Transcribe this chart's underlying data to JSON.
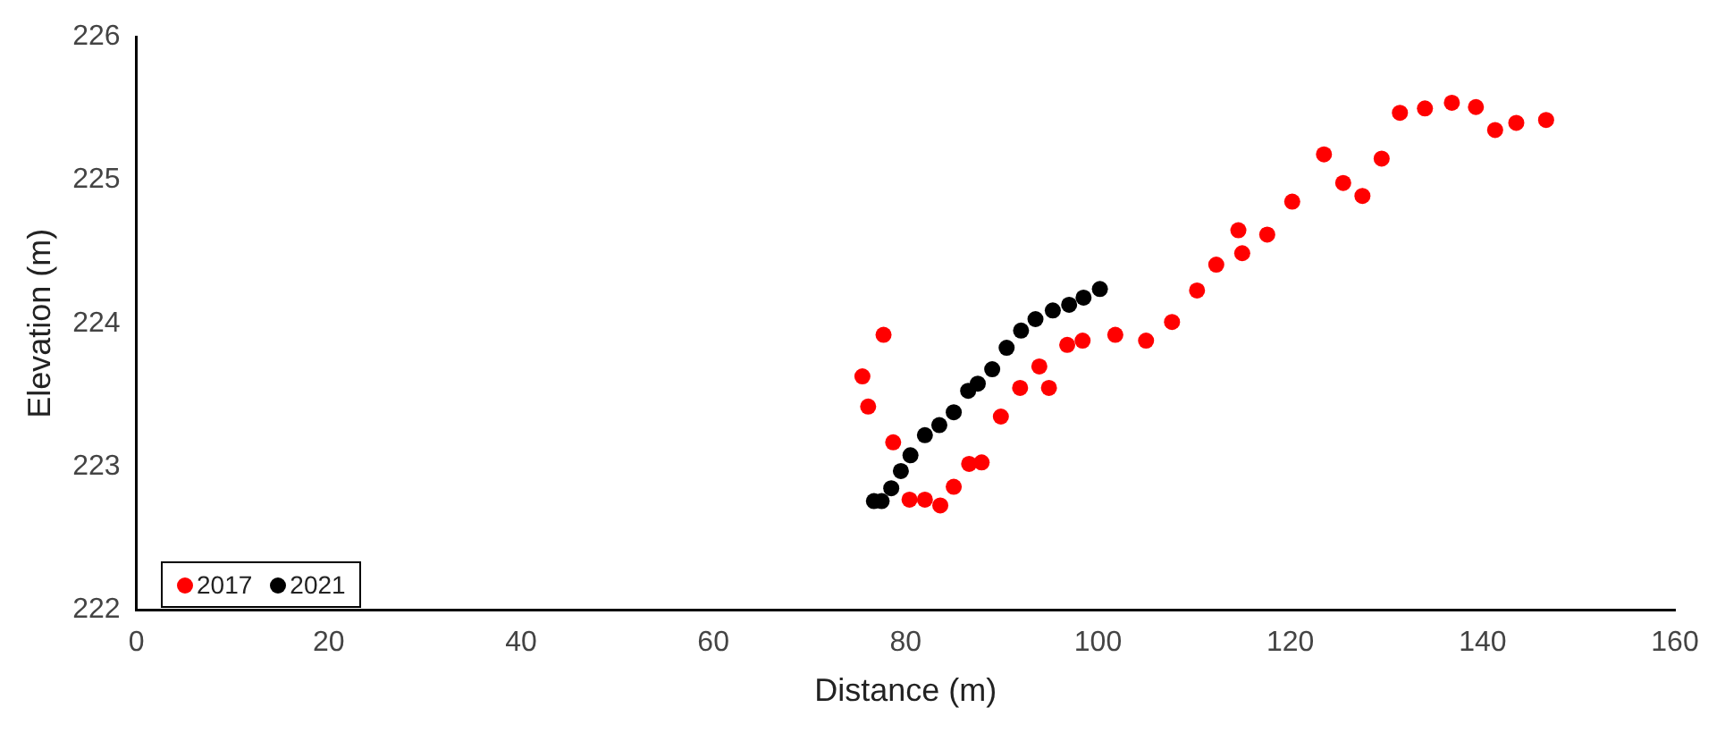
{
  "chart_data": {
    "type": "scatter",
    "xlabel": "Distance (m)",
    "ylabel": "Elevation (m)",
    "xlim": [
      0,
      160
    ],
    "xticks": [
      0,
      20,
      40,
      60,
      80,
      100,
      120,
      140,
      160
    ],
    "ylim": [
      222,
      226
    ],
    "yticks": [
      222,
      223,
      224,
      225,
      226
    ],
    "grid": false,
    "legend": "bottom left",
    "marker": "circle",
    "series": [
      {
        "name": "2017",
        "color": "#ff0000",
        "x": [
          75.5,
          76.1,
          77.7,
          78.7,
          80.4,
          82,
          83.6,
          85,
          86.6,
          87.9,
          89.9,
          91.9,
          93.9,
          94.9,
          96.8,
          98.4,
          101.8,
          105,
          107.7,
          110.3,
          112.3,
          114.6,
          115,
          117.6,
          120.2,
          123.5,
          125.5,
          127.5,
          129.5,
          131.4,
          134,
          136.8,
          139.3,
          141.3,
          143.5,
          146.6
        ],
        "values": [
          223.63,
          223.42,
          223.92,
          223.17,
          222.77,
          222.77,
          222.73,
          222.86,
          223.02,
          223.03,
          223.35,
          223.55,
          223.7,
          223.55,
          223.85,
          223.88,
          223.92,
          223.88,
          224.01,
          224.23,
          224.41,
          224.65,
          224.49,
          224.62,
          224.85,
          225.18,
          224.98,
          224.89,
          225.15,
          225.47,
          225.5,
          225.54,
          225.51,
          225.35,
          225.4,
          225.42
        ]
      },
      {
        "name": "2021",
        "color": "#000000",
        "x": [
          76.7,
          77.5,
          78.5,
          79.5,
          80.5,
          82,
          83.5,
          85,
          86.5,
          87.5,
          89,
          90.5,
          92,
          93.5,
          95.3,
          97,
          98.5,
          100.2
        ],
        "values": [
          222.76,
          222.76,
          222.85,
          222.97,
          223.08,
          223.22,
          223.29,
          223.38,
          223.53,
          223.58,
          223.68,
          223.83,
          223.95,
          224.03,
          224.09,
          224.13,
          224.18,
          224.24
        ]
      }
    ]
  }
}
